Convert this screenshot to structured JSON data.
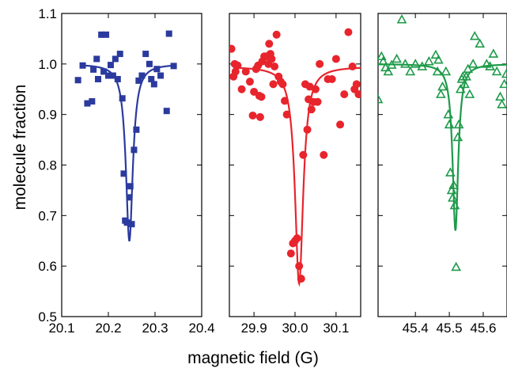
{
  "figure": {
    "ylabel": "molecule fraction",
    "xlabel": "magnetic field (G)"
  },
  "chart_data": [
    {
      "type": "scatter",
      "panel": "left",
      "marker": "square-filled",
      "color": "#2b3a9e",
      "xlim": [
        20.1,
        20.4
      ],
      "ylim": [
        0.5,
        1.1
      ],
      "xticks": [
        "20.1",
        "20.2",
        "20.3",
        "20.4"
      ],
      "yticks": [
        "0.5",
        "0.6",
        "0.7",
        "0.8",
        "0.9",
        "1.0",
        "1.1"
      ],
      "ylabel": "molecule fraction",
      "points": [
        [
          20.135,
          0.968
        ],
        [
          20.145,
          0.997
        ],
        [
          20.155,
          0.922
        ],
        [
          20.165,
          0.926
        ],
        [
          20.168,
          0.989
        ],
        [
          20.175,
          1.01
        ],
        [
          20.178,
          0.97
        ],
        [
          20.185,
          1.058
        ],
        [
          20.19,
          0.985
        ],
        [
          20.195,
          1.058
        ],
        [
          20.2,
          0.977
        ],
        [
          20.205,
          0.998
        ],
        [
          20.21,
          0.977
        ],
        [
          20.215,
          1.01
        ],
        [
          20.22,
          0.97
        ],
        [
          20.225,
          1.02
        ],
        [
          20.23,
          0.932
        ],
        [
          20.233,
          0.783
        ],
        [
          20.236,
          0.69
        ],
        [
          20.24,
          0.686
        ],
        [
          20.245,
          0.736
        ],
        [
          20.247,
          0.758
        ],
        [
          20.25,
          0.683
        ],
        [
          20.255,
          0.83
        ],
        [
          20.26,
          0.87
        ],
        [
          20.265,
          0.967
        ],
        [
          20.272,
          0.977
        ],
        [
          20.28,
          1.02
        ],
        [
          20.288,
          1.0
        ],
        [
          20.292,
          0.97
        ],
        [
          20.298,
          0.96
        ],
        [
          20.304,
          0.99
        ],
        [
          20.312,
          0.977
        ],
        [
          20.325,
          0.907
        ],
        [
          20.33,
          1.06
        ],
        [
          20.34,
          0.996
        ]
      ],
      "fit": {
        "center": 20.245,
        "width": 0.009,
        "depth": 0.35,
        "baseline": 1.0,
        "xrange": [
          20.14,
          20.34
        ]
      }
    },
    {
      "type": "scatter",
      "panel": "middle",
      "marker": "circle-filled",
      "color": "#e8242c",
      "xlim": [
        29.84,
        30.16
      ],
      "ylim": [
        0.5,
        1.1
      ],
      "xticks": [
        "29.9",
        "30.0",
        "30.1"
      ],
      "points": [
        [
          29.845,
          1.03
        ],
        [
          29.85,
          0.975
        ],
        [
          29.853,
          1.0
        ],
        [
          29.855,
          0.985
        ],
        [
          29.86,
          0.997
        ],
        [
          29.87,
          0.95
        ],
        [
          29.88,
          0.985
        ],
        [
          29.89,
          0.965
        ],
        [
          29.897,
          0.898
        ],
        [
          29.9,
          0.945
        ],
        [
          29.905,
          0.99
        ],
        [
          29.91,
          0.997
        ],
        [
          29.913,
          0.937
        ],
        [
          29.915,
          0.895
        ],
        [
          29.918,
          0.935
        ],
        [
          29.92,
          1.005
        ],
        [
          29.925,
          1.015
        ],
        [
          29.93,
          1.015
        ],
        [
          29.935,
          1.0
        ],
        [
          29.937,
          1.04
        ],
        [
          29.94,
          1.02
        ],
        [
          29.943,
          1.01
        ],
        [
          29.947,
          0.96
        ],
        [
          29.95,
          0.995
        ],
        [
          29.955,
          1.058
        ],
        [
          29.96,
          0.975
        ],
        [
          29.965,
          0.965
        ],
        [
          29.97,
          0.96
        ],
        [
          29.975,
          0.927
        ],
        [
          29.98,
          0.9
        ],
        [
          29.99,
          0.625
        ],
        [
          29.995,
          0.645
        ],
        [
          30.0,
          0.65
        ],
        [
          30.005,
          0.655
        ],
        [
          30.01,
          0.6
        ],
        [
          30.015,
          0.575
        ],
        [
          30.02,
          0.82
        ],
        [
          30.025,
          0.96
        ],
        [
          30.03,
          0.87
        ],
        [
          30.033,
          0.93
        ],
        [
          30.036,
          0.955
        ],
        [
          30.04,
          0.91
        ],
        [
          30.045,
          0.925
        ],
        [
          30.05,
          0.95
        ],
        [
          30.055,
          0.925
        ],
        [
          30.06,
          1.0
        ],
        [
          30.07,
          0.82
        ],
        [
          30.08,
          0.97
        ],
        [
          30.09,
          0.97
        ],
        [
          30.1,
          1.01
        ],
        [
          30.11,
          0.88
        ],
        [
          30.12,
          0.94
        ],
        [
          30.13,
          1.063
        ],
        [
          30.14,
          0.995
        ],
        [
          30.145,
          0.95
        ],
        [
          30.15,
          0.96
        ],
        [
          30.155,
          0.94
        ]
      ],
      "fit": {
        "center": 30.01,
        "width": 0.012,
        "depth": 0.43,
        "baseline": 0.995,
        "xrange": [
          29.85,
          30.16
        ]
      }
    },
    {
      "type": "scatter",
      "panel": "right",
      "marker": "triangle-open",
      "color": "#1e9a4a",
      "xlim": [
        45.29,
        45.67
      ],
      "ylim": [
        0.5,
        1.1
      ],
      "xticks": [
        "45.4",
        "45.5",
        "45.6"
      ],
      "points": [
        [
          45.29,
          0.93
        ],
        [
          45.3,
          1.015
        ],
        [
          45.305,
          1.005
        ],
        [
          45.312,
          0.993
        ],
        [
          45.32,
          0.985
        ],
        [
          45.33,
          0.998
        ],
        [
          45.345,
          1.01
        ],
        [
          45.36,
          1.088
        ],
        [
          45.37,
          1.0
        ],
        [
          45.385,
          0.985
        ],
        [
          45.4,
          1.0
        ],
        [
          45.42,
          0.995
        ],
        [
          45.44,
          1.005
        ],
        [
          45.46,
          1.018
        ],
        [
          45.465,
          0.985
        ],
        [
          45.468,
          1.008
        ],
        [
          45.475,
          0.94
        ],
        [
          45.48,
          0.955
        ],
        [
          45.49,
          0.985
        ],
        [
          45.497,
          0.9
        ],
        [
          45.5,
          0.88
        ],
        [
          45.503,
          0.785
        ],
        [
          45.507,
          0.75
        ],
        [
          45.51,
          0.735
        ],
        [
          45.513,
          0.76
        ],
        [
          45.516,
          0.72
        ],
        [
          45.52,
          0.598
        ],
        [
          45.525,
          0.855
        ],
        [
          45.528,
          0.88
        ],
        [
          45.533,
          0.95
        ],
        [
          45.537,
          0.97
        ],
        [
          45.54,
          0.975
        ],
        [
          45.545,
          0.96
        ],
        [
          45.55,
          0.975
        ],
        [
          45.555,
          0.99
        ],
        [
          45.56,
          0.94
        ],
        [
          45.57,
          1.0
        ],
        [
          45.575,
          1.055
        ],
        [
          45.59,
          1.04
        ],
        [
          45.61,
          1.0
        ],
        [
          45.62,
          0.995
        ],
        [
          45.63,
          1.02
        ],
        [
          45.64,
          0.985
        ],
        [
          45.65,
          0.935
        ],
        [
          45.655,
          0.92
        ],
        [
          45.662,
          0.96
        ],
        [
          45.668,
          0.98
        ]
      ],
      "fit": {
        "center": 45.518,
        "width": 0.01,
        "depth": 0.33,
        "baseline": 1.0,
        "xrange": [
          45.29,
          45.67
        ]
      }
    }
  ]
}
